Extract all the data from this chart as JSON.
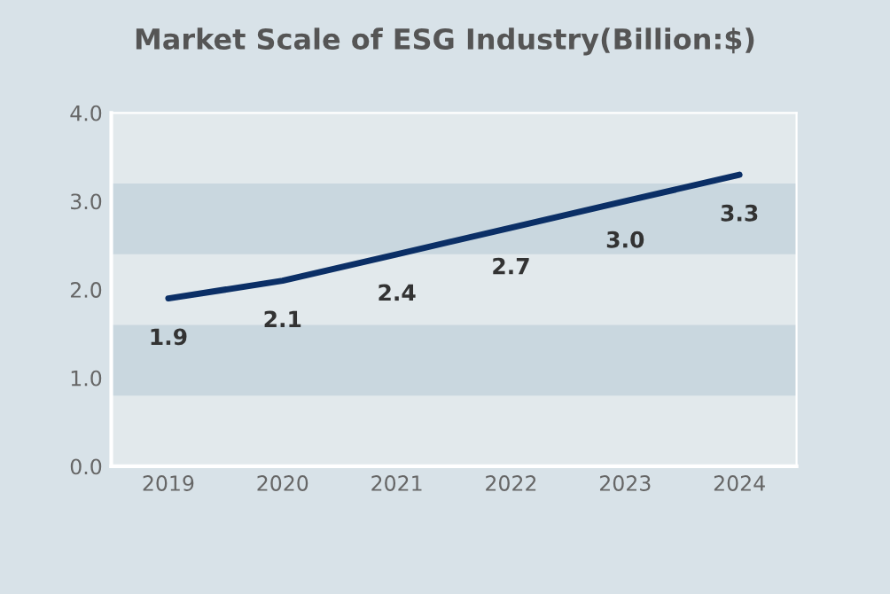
{
  "chart_data": {
    "type": "line",
    "title": "Market Scale of ESG Industry(Billion:$)",
    "categories": [
      "2019",
      "2020",
      "2021",
      "2022",
      "2023",
      "2024"
    ],
    "series": [
      {
        "color": "#0b2f66",
        "values": [
          1.9,
          2.1,
          2.4,
          2.7,
          3.0,
          3.3
        ],
        "value_labels": [
          "1.9",
          "2.1",
          "2.4",
          "2.7",
          "3.0",
          "3.3"
        ]
      }
    ],
    "ylim": [
      0,
      4
    ],
    "yticks": [
      {
        "value": 0,
        "label": "0.0"
      },
      {
        "value": 1,
        "label": "1.0"
      },
      {
        "value": 2,
        "label": "2.0"
      },
      {
        "value": 3,
        "label": "3.0"
      },
      {
        "value": 4,
        "label": "4.0"
      }
    ],
    "bands": [
      {
        "axis": "y",
        "from": 0.8,
        "to": 1.6,
        "color": "#c9d7df"
      },
      {
        "axis": "y",
        "from": 2.4,
        "to": 3.2,
        "color": "#c9d7df"
      }
    ],
    "line_style": "solid",
    "marker": "none",
    "grid": false,
    "legend": false
  }
}
